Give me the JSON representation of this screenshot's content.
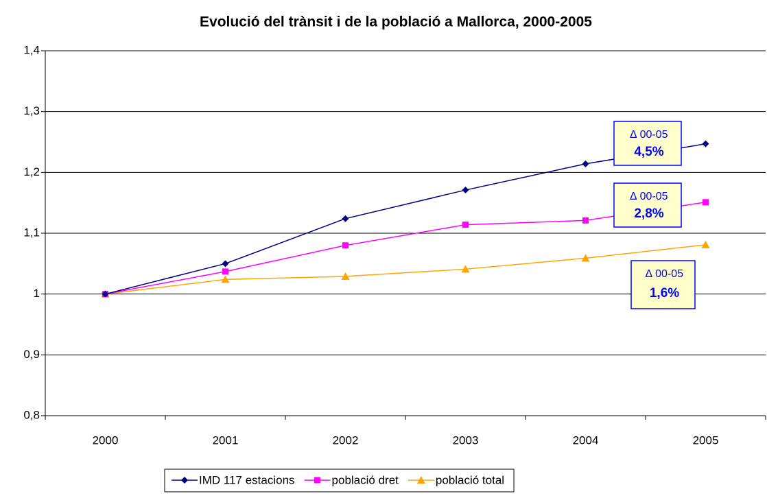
{
  "chart_data": {
    "type": "line",
    "title": "Evolució del trànsit i de la població a Mallorca, 2000-2005",
    "categories": [
      "2000",
      "2001",
      "2002",
      "2003",
      "2004",
      "2005"
    ],
    "series": [
      {
        "name": "IMD 117 estacions",
        "color": "#000080",
        "marker": "diamond",
        "values": [
          1.0,
          1.05,
          1.124,
          1.171,
          1.214,
          1.247
        ]
      },
      {
        "name": "població dret",
        "color": "#ff00ff",
        "marker": "square",
        "values": [
          1.0,
          1.037,
          1.08,
          1.114,
          1.121,
          1.151
        ]
      },
      {
        "name": "població total",
        "color": "#ffa500",
        "marker": "triangle",
        "values": [
          1.0,
          1.024,
          1.029,
          1.041,
          1.059,
          1.081
        ]
      }
    ],
    "annotations": [
      {
        "label": "∆ 00-05",
        "value": "4,5%"
      },
      {
        "label": "∆ 00-05",
        "value": "2,8%"
      },
      {
        "label": "∆ 00-05",
        "value": "1,6%"
      }
    ],
    "ylim": [
      0.8,
      1.4
    ],
    "yticks": [
      {
        "value": 0.8,
        "label": "0,8"
      },
      {
        "value": 0.9,
        "label": "0,9"
      },
      1,
      {
        "value": 1.1,
        "label": "1,1"
      },
      {
        "value": 1.2,
        "label": "1,2"
      },
      {
        "value": 1.3,
        "label": "1,3"
      },
      {
        "value": 1.4,
        "label": "1,4"
      }
    ],
    "grid": true
  }
}
